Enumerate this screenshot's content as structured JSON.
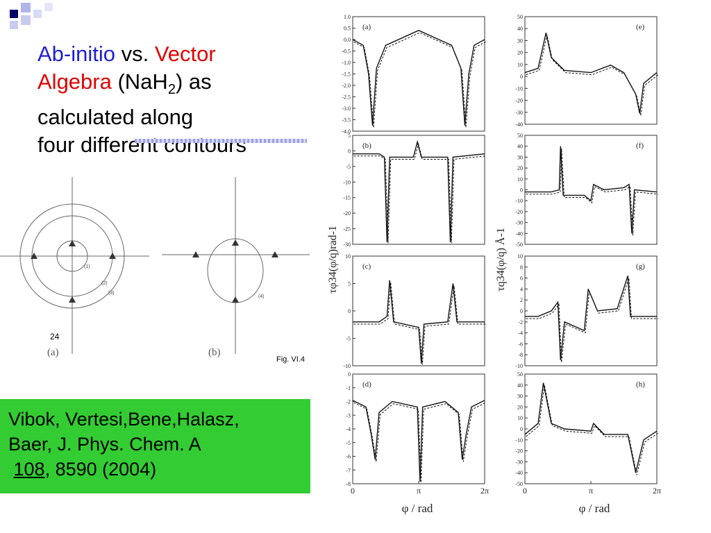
{
  "slide": {
    "title_part1": "Ab-initio",
    "title_part2": " vs. ",
    "title_part3": "Vector",
    "title_part4": "Algebra",
    "title_part5": " (NaH",
    "title_sub": "2",
    "title_part6": ") as",
    "title_line3": "calculated along",
    "title_line4": "four different contours",
    "page_number": "24",
    "colors": {
      "blue": "#1f1fd0",
      "red": "#e00000",
      "green_box": "#33cc33"
    }
  },
  "citation": {
    "line1": "Vibok, Vertesi,Bene,Halasz,",
    "line2": "Baer, J. Phys. Chem. A",
    "volume": "108",
    "rest": ", 8590 (2004)"
  },
  "contour_figure": {
    "label_a": "(a)",
    "label_b": "(b)",
    "fig_label": "Fig. VI.4",
    "contour_labels": [
      "(1)",
      "(2)",
      "(3)",
      "(4)"
    ]
  },
  "plots": {
    "left_ylabel": "τφ34(φ/q)rad-1",
    "right_ylabel": "τq34(φ/q) Å-1",
    "xlabel": "φ / rad",
    "xticks": [
      "0",
      "π",
      "2π"
    ],
    "panels": [
      {
        "id": "a",
        "label": "(a)",
        "ticks": [
          "1.0",
          "0.5",
          "0.0",
          "-0.5",
          "-1.0",
          "-1.5",
          "-2.0",
          "-2.5",
          "-3.0",
          "-3.5",
          "-4.0"
        ]
      },
      {
        "id": "b",
        "label": "(b)",
        "ticks": [
          "5",
          "0",
          "-5",
          "-10",
          "-15",
          "-20",
          "-25",
          "-30"
        ]
      },
      {
        "id": "c",
        "label": "(c)",
        "ticks": [
          "10",
          "5",
          "0",
          "-5",
          "-10"
        ]
      },
      {
        "id": "d",
        "label": "(d)",
        "ticks": [
          "0",
          "-1",
          "-2",
          "-3",
          "-4",
          "-5",
          "-6",
          "-7",
          "-8"
        ]
      },
      {
        "id": "e",
        "label": "(e)",
        "ticks": [
          "50",
          "40",
          "30",
          "20",
          "10",
          "0",
          "-10",
          "-20",
          "-30",
          "-40"
        ]
      },
      {
        "id": "f",
        "label": "(f)",
        "ticks": [
          "50",
          "40",
          "30",
          "20",
          "10",
          "0",
          "-10",
          "-20",
          "-30",
          "-40",
          "-50"
        ]
      },
      {
        "id": "g",
        "label": "(g)",
        "ticks": [
          "10",
          "8",
          "6",
          "4",
          "2",
          "0",
          "-2",
          "-4",
          "-6",
          "-8",
          "-10"
        ]
      },
      {
        "id": "h",
        "label": "(h)",
        "ticks": [
          "50",
          "40",
          "30",
          "20",
          "10",
          "0",
          "-10",
          "-20",
          "-30",
          "-40",
          "-50"
        ]
      }
    ]
  }
}
